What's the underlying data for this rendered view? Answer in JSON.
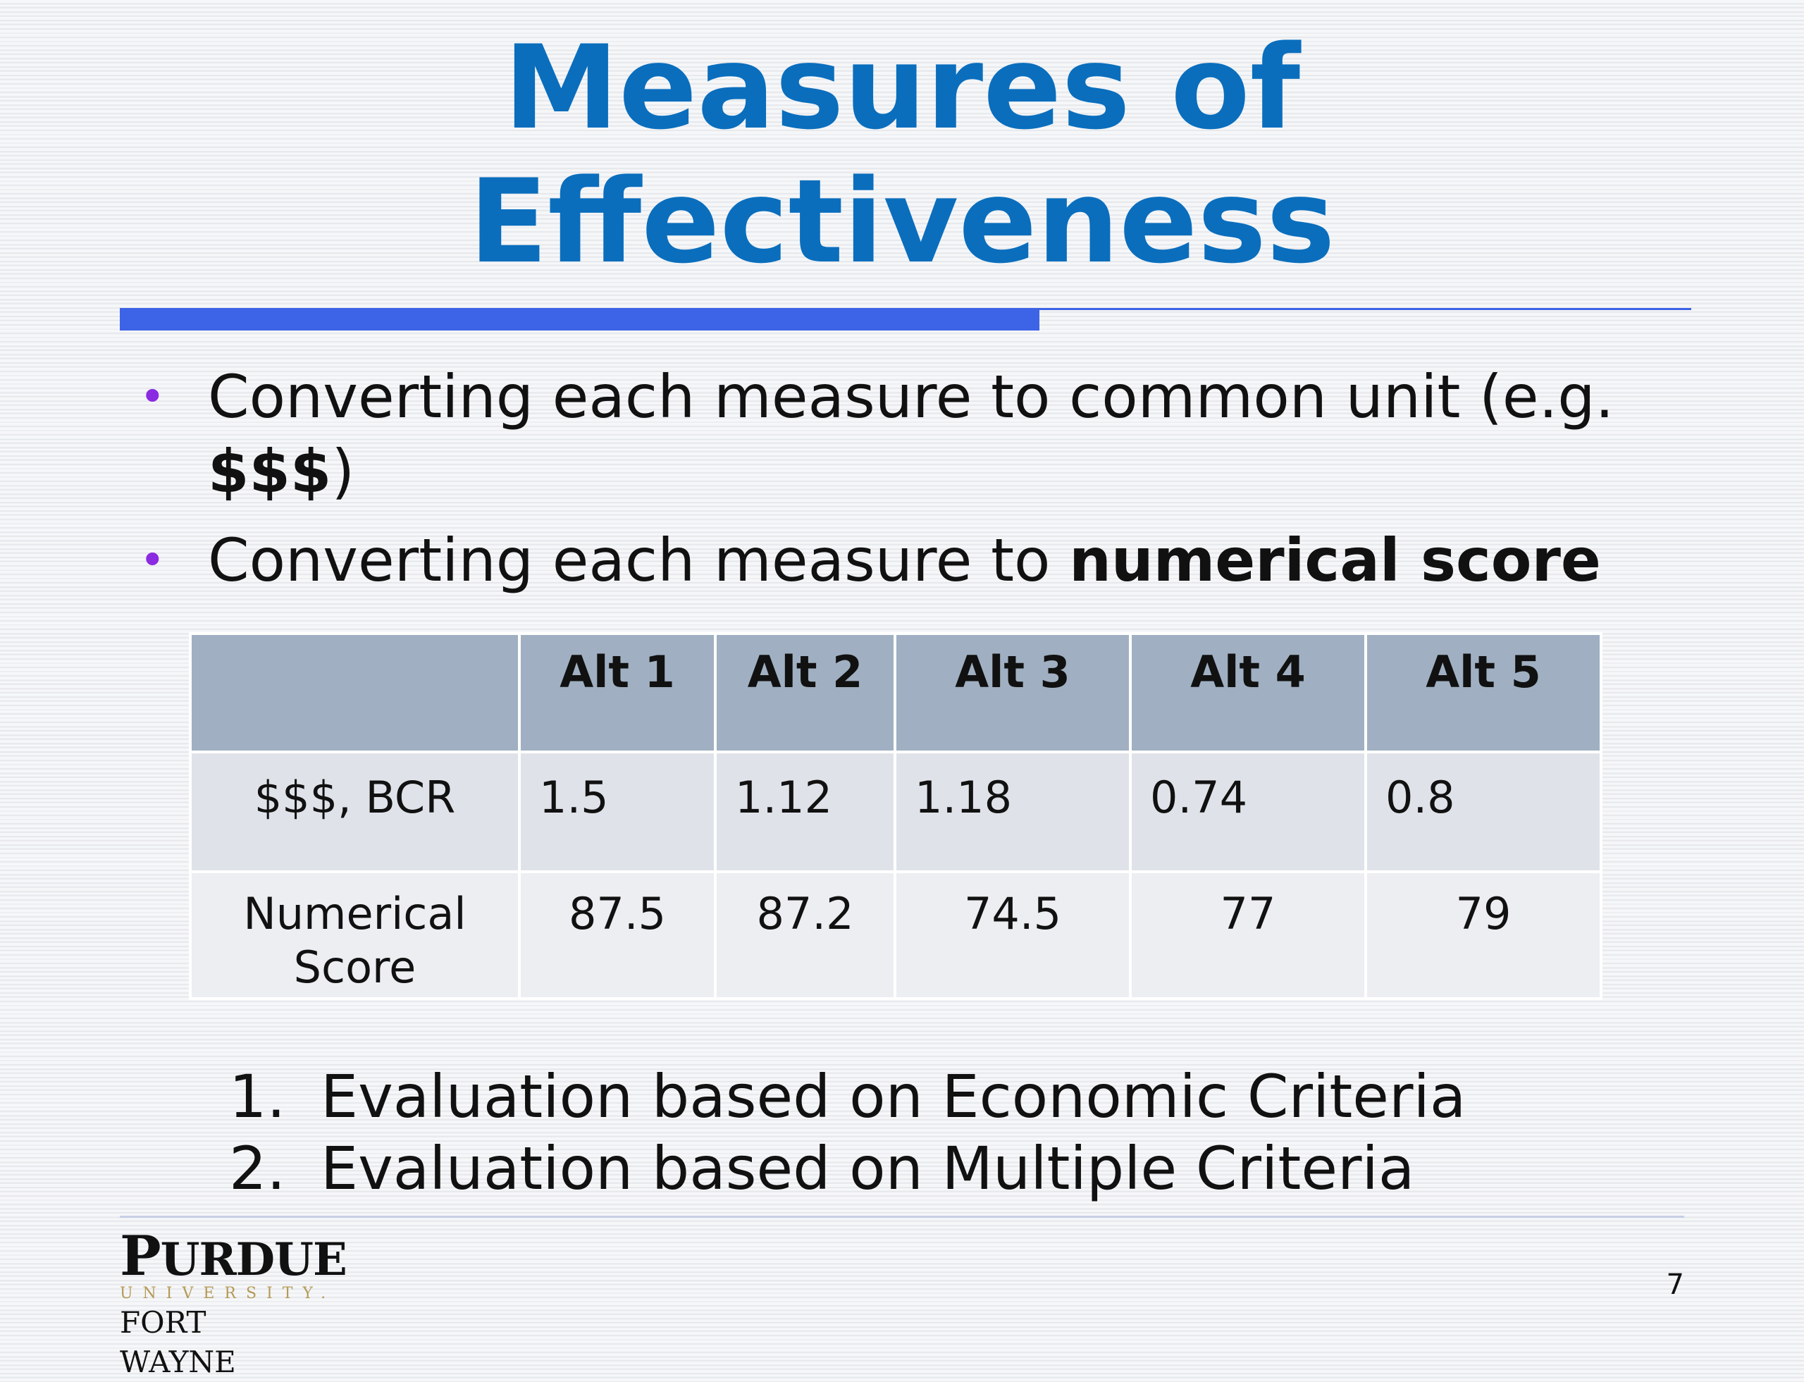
{
  "title": {
    "line1": "Measures of",
    "line2": "Effectiveness"
  },
  "bullets": [
    {
      "text_before": "Converting each measure to common unit (e.g. ",
      "bold": "$$$",
      "text_after": ")"
    },
    {
      "text_before": "Converting each measure to ",
      "bold": "numerical score",
      "text_after": ""
    }
  ],
  "table": {
    "headers": [
      "",
      "Alt 1",
      "Alt 2",
      "Alt 3",
      "Alt 4",
      "Alt 5"
    ],
    "rows": [
      {
        "label": "$$$, BCR",
        "values": [
          "1.5",
          "1.12",
          "1.18",
          "0.74",
          "0.8"
        ]
      },
      {
        "label_line1": "Numerical",
        "label_line2": "Score",
        "values": [
          "87.5",
          "87.2",
          "74.5",
          "77",
          "79"
        ]
      }
    ]
  },
  "numbered_list": [
    {
      "num": "1.",
      "text": "Evaluation based on Economic Criteria"
    },
    {
      "num": "2.",
      "text": "Evaluation based on Multiple Criteria"
    }
  ],
  "logo": {
    "line1_big": "P",
    "line1_rest": "URDUE",
    "line2": "UNIVERSITY.",
    "line3": "FORT WAYNE"
  },
  "page_number": "7",
  "colors": {
    "title": "#0a6ebd",
    "rule": "#3d63e6",
    "bullet": "#8a2be2",
    "table_header": "#a0b0c2"
  }
}
